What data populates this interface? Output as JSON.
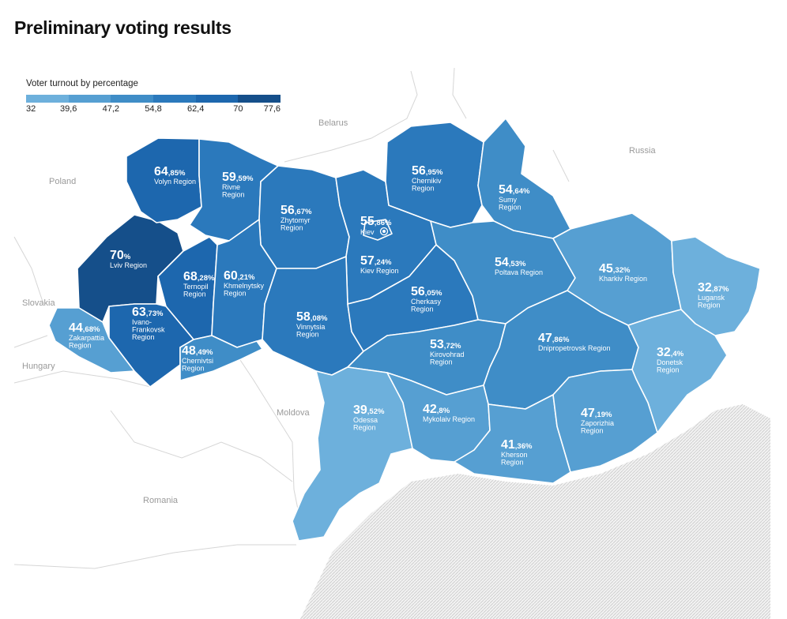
{
  "title": "Preliminary voting results",
  "legend": {
    "caption": "Voter turnout by percentage",
    "ticks": [
      "32",
      "39,6",
      "47,2",
      "54,8",
      "62,4",
      "70",
      "77,6"
    ],
    "colors": [
      "#6db0dc",
      "#569fd2",
      "#3f8dc7",
      "#2b79bc",
      "#1d67ae",
      "#154f8a"
    ]
  },
  "countries": {
    "belarus": "Belarus",
    "russia": "Russia",
    "poland": "Poland",
    "slovakia": "Slovakia",
    "hungary": "Hungary",
    "moldova": "Moldova",
    "romania": "Romania"
  },
  "regions": [
    {
      "id": "volyn",
      "name": [
        "Volyn Region"
      ],
      "int": "64",
      "dec": ",85%",
      "value": 64.85
    },
    {
      "id": "rivne",
      "name": [
        "Rivne",
        "Region"
      ],
      "int": "59",
      "dec": ",59%",
      "value": 59.59
    },
    {
      "id": "lviv",
      "name": [
        "Lviv Region"
      ],
      "int": "70",
      "dec": "%",
      "value": 70
    },
    {
      "id": "zakarpattia",
      "name": [
        "Zakarpattia",
        "Region"
      ],
      "int": "44",
      "dec": ",68%",
      "value": 44.68
    },
    {
      "id": "ternopil",
      "name": [
        "Ternopil",
        "Region"
      ],
      "int": "68",
      "dec": ",28%",
      "value": 68.28
    },
    {
      "id": "ivano",
      "name": [
        "Ivano-",
        "Frankovsk",
        "Region"
      ],
      "int": "63",
      "dec": ",73%",
      "value": 63.73
    },
    {
      "id": "chernivtsi",
      "name": [
        "Chernivtsi",
        "Region"
      ],
      "int": "48",
      "dec": ",49%",
      "value": 48.49
    },
    {
      "id": "khmelnytsky",
      "name": [
        "Khmelnytsky",
        "Region"
      ],
      "int": "60",
      "dec": ",21%",
      "value": 60.21
    },
    {
      "id": "zhytomyr",
      "name": [
        "Zhytomyr",
        "Region"
      ],
      "int": "56",
      "dec": ",67%",
      "value": 56.67
    },
    {
      "id": "vinnytsia",
      "name": [
        "Vinnytsia",
        "Region"
      ],
      "int": "58",
      "dec": ",08%",
      "value": 58.08
    },
    {
      "id": "kievcity",
      "name": [
        "Kiev"
      ],
      "int": "55",
      "dec": ",86%",
      "value": 55.86
    },
    {
      "id": "kievreg",
      "name": [
        "Kiev Region"
      ],
      "int": "57",
      "dec": ",24%",
      "value": 57.24
    },
    {
      "id": "chernihiv",
      "name": [
        "Chernikiv",
        "Region"
      ],
      "int": "56",
      "dec": ",95%",
      "value": 56.95
    },
    {
      "id": "sumy",
      "name": [
        "Sumy",
        "Region"
      ],
      "int": "54",
      "dec": ",64%",
      "value": 54.64
    },
    {
      "id": "cherkasy",
      "name": [
        "Cherkasy",
        "Region"
      ],
      "int": "56",
      "dec": ",05%",
      "value": 56.05
    },
    {
      "id": "poltava",
      "name": [
        "Poltava Region"
      ],
      "int": "54",
      "dec": ",53%",
      "value": 54.53
    },
    {
      "id": "kharkiv",
      "name": [
        "Kharkiv Region"
      ],
      "int": "45",
      "dec": ",32%",
      "value": 45.32
    },
    {
      "id": "luhansk",
      "name": [
        "Lugansk",
        "Region"
      ],
      "int": "32",
      "dec": ",87%",
      "value": 32.87
    },
    {
      "id": "kirovohrad",
      "name": [
        "Kirovohrad",
        "Region"
      ],
      "int": "53",
      "dec": ",72%",
      "value": 53.72
    },
    {
      "id": "dnipro",
      "name": [
        "Dnipropetrovsk Region"
      ],
      "int": "47",
      "dec": ",86%",
      "value": 47.86
    },
    {
      "id": "donetsk",
      "name": [
        "Donetsk",
        "Region"
      ],
      "int": "32",
      "dec": ",4%",
      "value": 32.4
    },
    {
      "id": "odessa",
      "name": [
        "Odessa",
        "Region"
      ],
      "int": "39",
      "dec": ",52%",
      "value": 39.52
    },
    {
      "id": "mykolaiv",
      "name": [
        "Mykolaiv Region"
      ],
      "int": "42",
      "dec": ",8%",
      "value": 42.8
    },
    {
      "id": "kherson",
      "name": [
        "Kherson",
        "Region"
      ],
      "int": "41",
      "dec": ",36%",
      "value": 41.36
    },
    {
      "id": "zaporizhia",
      "name": [
        "Zaporizhia",
        "Region"
      ],
      "int": "47",
      "dec": ",19%",
      "value": 47.19
    }
  ]
}
